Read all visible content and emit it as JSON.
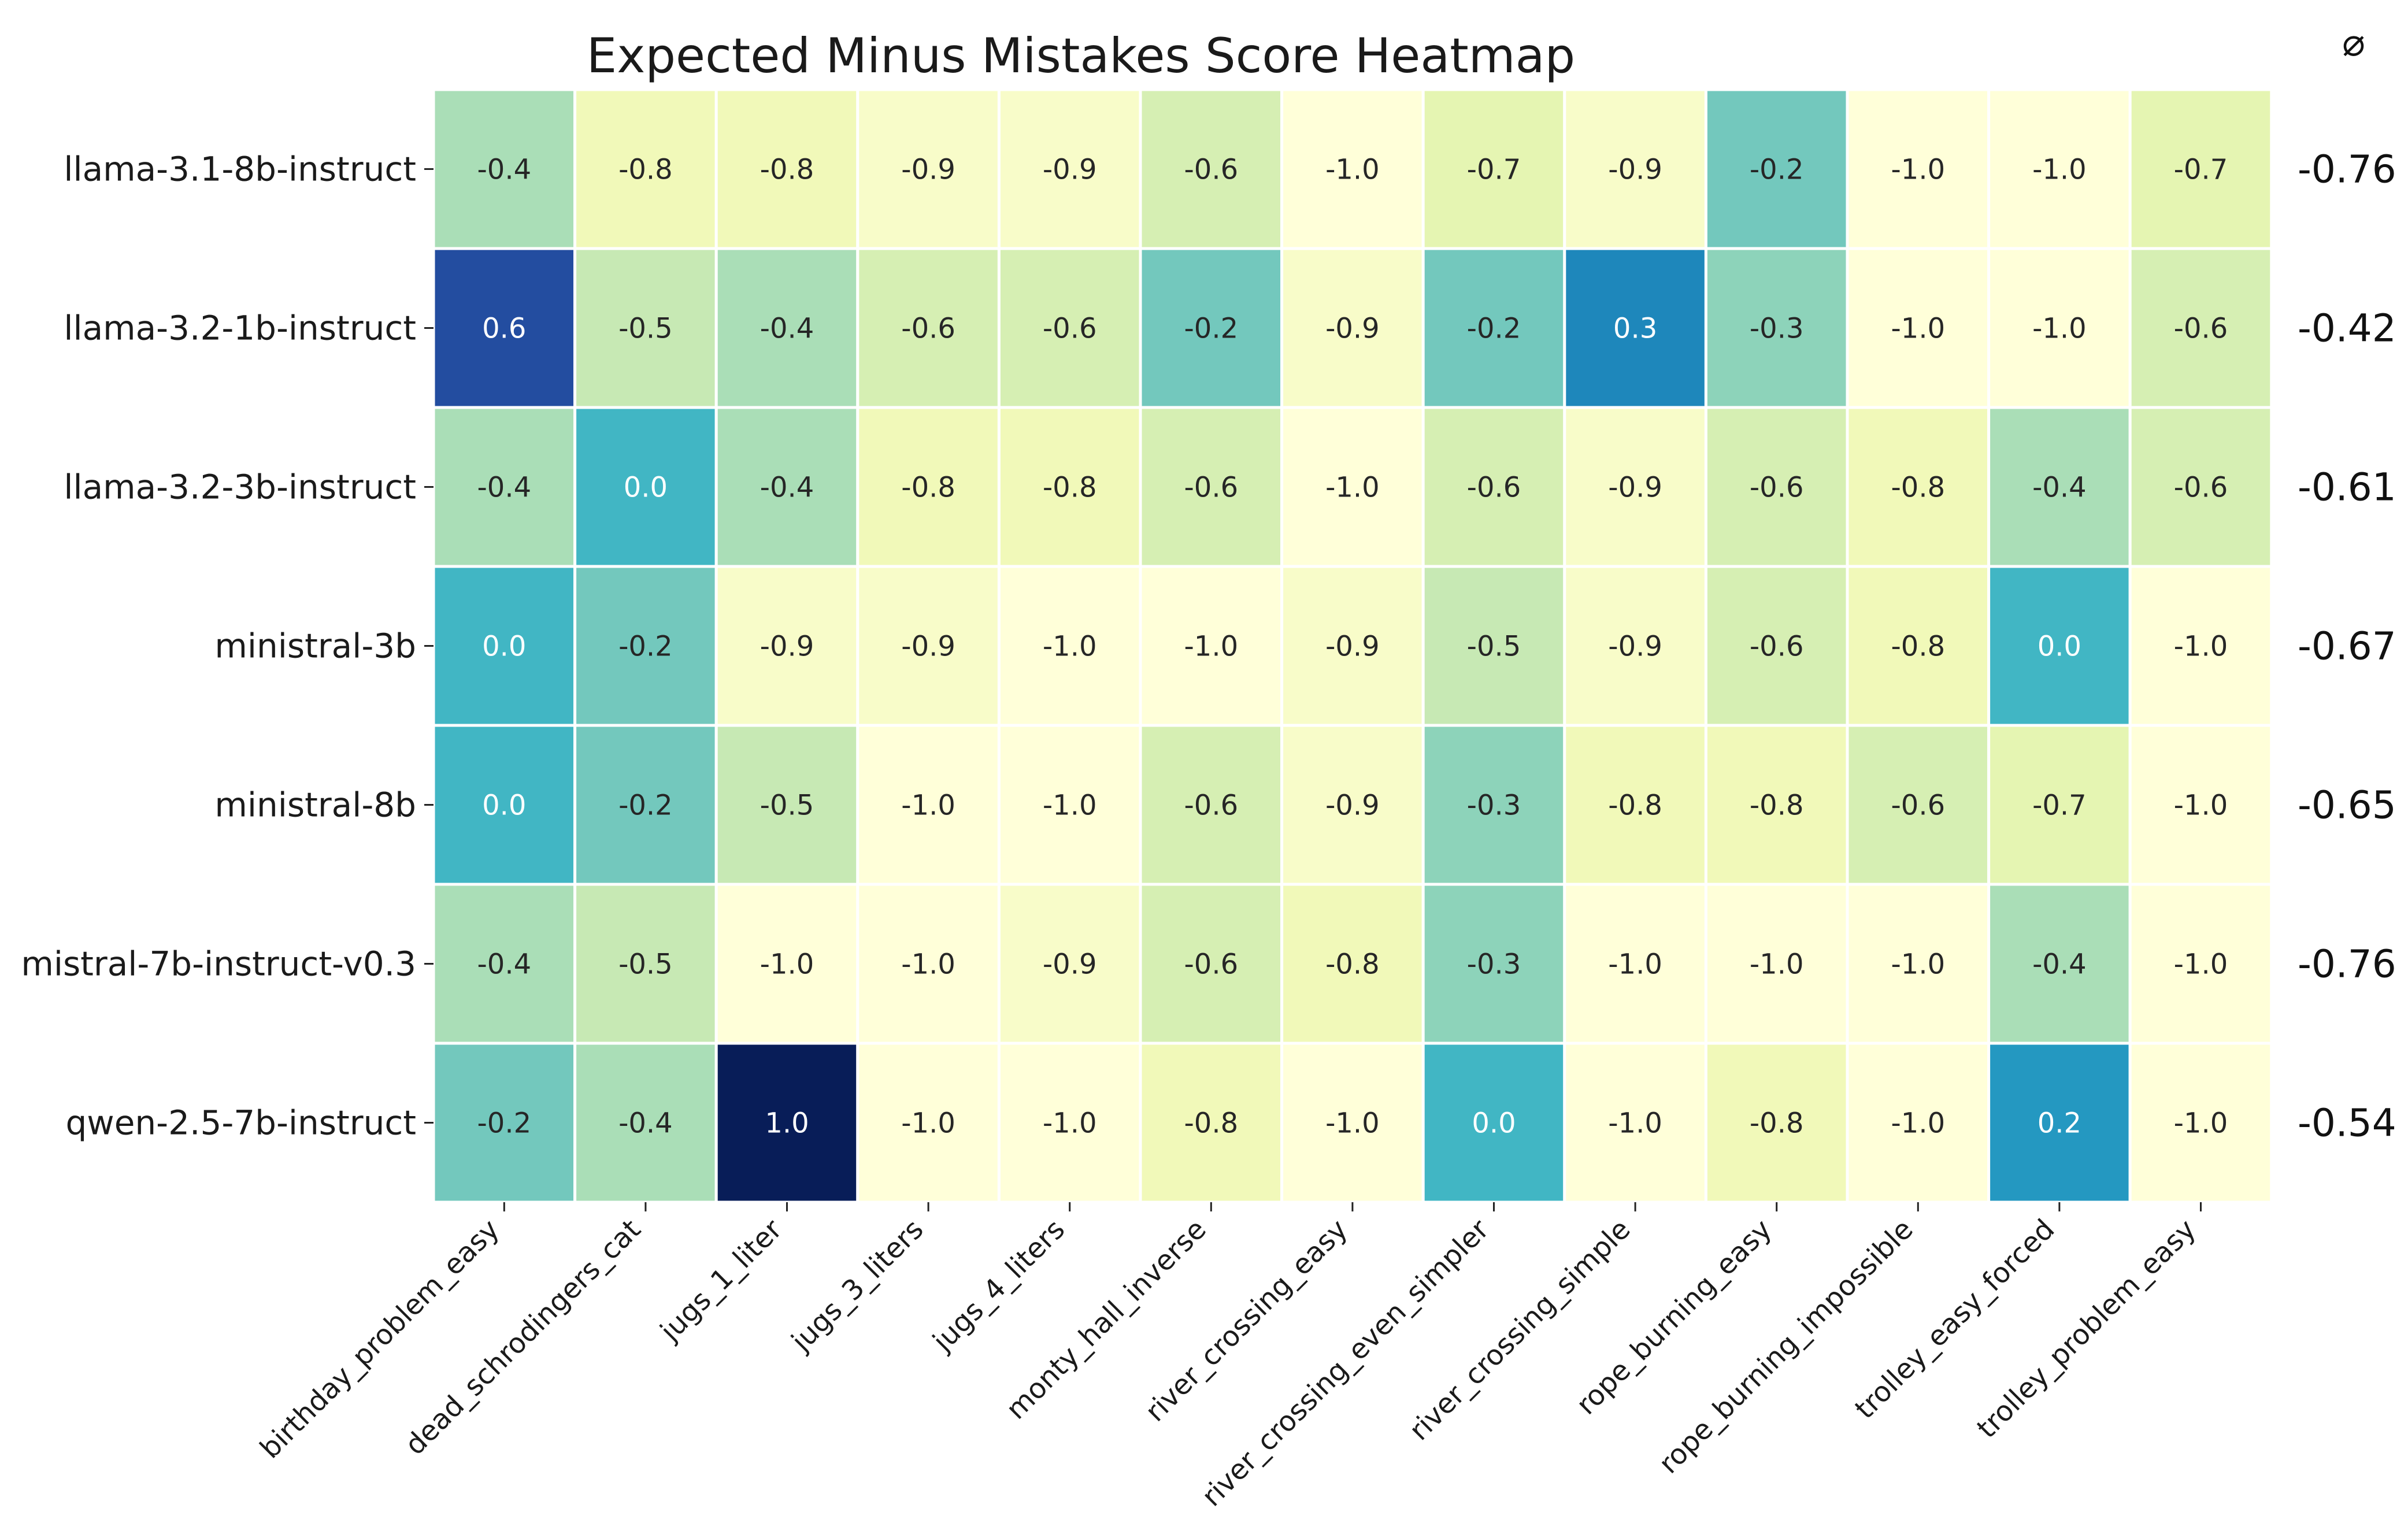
{
  "chart_data": {
    "type": "heatmap",
    "title": "Expected Minus Mistakes Score Heatmap",
    "avg_header": "⌀",
    "rows": [
      "llama-3.1-8b-instruct",
      "llama-3.2-1b-instruct",
      "llama-3.2-3b-instruct",
      "ministral-3b",
      "ministral-8b",
      "mistral-7b-instruct-v0.3",
      "qwen-2.5-7b-instruct"
    ],
    "columns": [
      "birthday_problem_easy",
      "dead_schrodingers_cat",
      "jugs_1_liter",
      "jugs_3_liters",
      "jugs_4_liters",
      "monty_hall_inverse",
      "river_crossing_easy",
      "river_crossing_even_simpler",
      "river_crossing_simple",
      "rope_burning_easy",
      "rope_burning_impossible",
      "trolley_easy_forced",
      "trolley_problem_easy"
    ],
    "values": [
      [
        -0.4,
        -0.8,
        -0.8,
        -0.9,
        -0.9,
        -0.6,
        -1.0,
        -0.7,
        -0.9,
        -0.2,
        -1.0,
        -1.0,
        -0.7
      ],
      [
        0.6,
        -0.5,
        -0.4,
        -0.6,
        -0.6,
        -0.2,
        -0.9,
        -0.2,
        0.3,
        -0.3,
        -1.0,
        -1.0,
        -0.6
      ],
      [
        -0.4,
        0.0,
        -0.4,
        -0.8,
        -0.8,
        -0.6,
        -1.0,
        -0.6,
        -0.9,
        -0.6,
        -0.8,
        -0.4,
        -0.6
      ],
      [
        0.0,
        -0.2,
        -0.9,
        -0.9,
        -1.0,
        -1.0,
        -0.9,
        -0.5,
        -0.9,
        -0.6,
        -0.8,
        0.0,
        -1.0
      ],
      [
        0.0,
        -0.2,
        -0.5,
        -1.0,
        -1.0,
        -0.6,
        -0.9,
        -0.3,
        -0.8,
        -0.8,
        -0.6,
        -0.7,
        -1.0
      ],
      [
        -0.4,
        -0.5,
        -1.0,
        -1.0,
        -0.9,
        -0.6,
        -0.8,
        -0.3,
        -1.0,
        -1.0,
        -1.0,
        -0.4,
        -1.0
      ],
      [
        -0.2,
        -0.4,
        1.0,
        -1.0,
        -1.0,
        -0.8,
        -1.0,
        0.0,
        -1.0,
        -0.8,
        -1.0,
        0.2,
        -1.0
      ]
    ],
    "row_averages": [
      "-0.76",
      "-0.42",
      "-0.61",
      "-0.67",
      "-0.65",
      "-0.76",
      "-0.54"
    ],
    "value_range": [
      -1.0,
      1.0
    ],
    "colormap": "YlGnBu",
    "cell_border_color": "#ffffff"
  }
}
